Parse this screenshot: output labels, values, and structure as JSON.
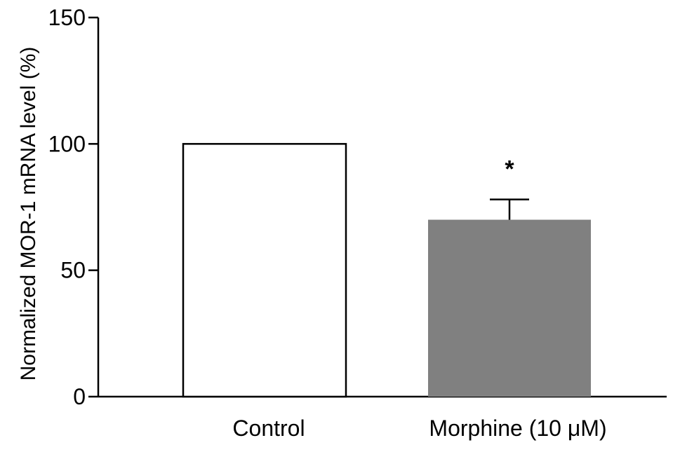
{
  "chart_data": {
    "type": "bar",
    "title": "",
    "xlabel": "",
    "ylabel": "Normalized MOR-1 mRNA level (%)",
    "categories": [
      "Control",
      "Morphine (10  μM)"
    ],
    "values": [
      100,
      70
    ],
    "error_upper": [
      0,
      8
    ],
    "significance": [
      "",
      "*"
    ],
    "bar_colors": [
      "#ffffff",
      "#808080"
    ],
    "ylim": [
      0,
      150
    ],
    "yticks": [
      0,
      50,
      100,
      150
    ],
    "yticklabels": [
      "0",
      "50",
      "100",
      "150"
    ],
    "grid": false,
    "legend": "none"
  }
}
